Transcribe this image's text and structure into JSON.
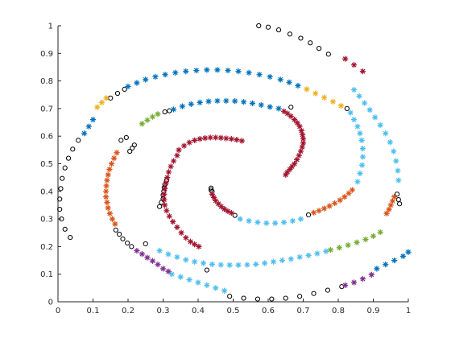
{
  "chart_data": {
    "type": "scatter",
    "title": "",
    "xlabel": "",
    "ylabel": "",
    "xlim": [
      0,
      1
    ],
    "ylim": [
      0,
      1
    ],
    "grid": false,
    "xticks": [
      "0",
      "0.1",
      "0.2",
      "0.3",
      "0.4",
      "0.5",
      "0.6",
      "0.7",
      "0.8",
      "0.9",
      "1"
    ],
    "yticks": [
      "0",
      "0.1",
      "0.2",
      "0.3",
      "0.4",
      "0.5",
      "0.6",
      "0.7",
      "0.8",
      "0.9",
      "1"
    ],
    "marker_colors": {
      "blue": "#0072BD",
      "cyan": "#4DBEEE",
      "red": "#A2142F",
      "orange": "#D95319",
      "yellow": "#EDB120",
      "green": "#77AC30",
      "purple": "#7E2F8E",
      "black": "#000000"
    },
    "series": [
      {
        "marker": "circle",
        "color": "black",
        "points": [
          [
            0.573,
            1.0
          ],
          [
            0.6,
            0.995
          ],
          [
            0.63,
            0.985
          ],
          [
            0.662,
            0.97
          ],
          [
            0.693,
            0.955
          ],
          [
            0.72,
            0.938
          ],
          [
            0.745,
            0.918
          ],
          [
            0.772,
            0.897
          ],
          [
            0.035,
            0.233
          ],
          [
            0.02,
            0.263
          ],
          [
            0.01,
            0.3
          ],
          [
            0.005,
            0.335
          ],
          [
            0.005,
            0.372
          ],
          [
            0.008,
            0.41
          ],
          [
            0.012,
            0.447
          ],
          [
            0.02,
            0.485
          ],
          [
            0.03,
            0.52
          ],
          [
            0.042,
            0.553
          ],
          [
            0.058,
            0.585
          ],
          [
            0.15,
            0.738
          ],
          [
            0.17,
            0.755
          ],
          [
            0.19,
            0.77
          ],
          [
            0.305,
            0.688
          ],
          [
            0.318,
            0.692
          ],
          [
            0.18,
            0.585
          ],
          [
            0.195,
            0.595
          ],
          [
            0.3,
            0.373
          ],
          [
            0.3,
            0.387
          ],
          [
            0.302,
            0.4
          ],
          [
            0.303,
            0.413
          ],
          [
            0.305,
            0.425
          ],
          [
            0.31,
            0.44
          ],
          [
            0.29,
            0.345
          ],
          [
            0.295,
            0.36
          ],
          [
            0.437,
            0.412
          ],
          [
            0.437,
            0.405
          ],
          [
            0.44,
            0.4
          ],
          [
            0.505,
            0.313
          ],
          [
            0.715,
            0.315
          ],
          [
            0.825,
            0.7
          ],
          [
            0.665,
            0.705
          ],
          [
            0.25,
            0.21
          ],
          [
            0.425,
            0.115
          ],
          [
            0.205,
            0.545
          ],
          [
            0.212,
            0.557
          ],
          [
            0.218,
            0.568
          ],
          [
            0.165,
            0.26
          ],
          [
            0.175,
            0.245
          ],
          [
            0.185,
            0.228
          ],
          [
            0.198,
            0.213
          ],
          [
            0.21,
            0.2
          ],
          [
            0.49,
            0.02
          ],
          [
            0.53,
            0.013
          ],
          [
            0.57,
            0.01
          ],
          [
            0.61,
            0.01
          ],
          [
            0.65,
            0.013
          ],
          [
            0.69,
            0.02
          ],
          [
            0.73,
            0.03
          ],
          [
            0.77,
            0.042
          ],
          [
            0.81,
            0.055
          ],
          [
            0.975,
            0.355
          ],
          [
            0.972,
            0.37
          ],
          [
            0.968,
            0.39
          ]
        ]
      },
      {
        "marker": "star",
        "color": "blue",
        "points": [
          [
            0.075,
            0.61
          ],
          [
            0.088,
            0.635
          ],
          [
            0.1,
            0.66
          ],
          [
            0.2,
            0.78
          ],
          [
            0.225,
            0.793
          ],
          [
            0.25,
            0.805
          ],
          [
            0.278,
            0.815
          ],
          [
            0.306,
            0.823
          ],
          [
            0.335,
            0.83
          ],
          [
            0.365,
            0.835
          ],
          [
            0.395,
            0.838
          ],
          [
            0.425,
            0.84
          ],
          [
            0.455,
            0.84
          ],
          [
            0.485,
            0.838
          ],
          [
            0.515,
            0.835
          ],
          [
            0.545,
            0.83
          ],
          [
            0.575,
            0.823
          ],
          [
            0.605,
            0.815
          ],
          [
            0.635,
            0.805
          ],
          [
            0.66,
            0.795
          ],
          [
            0.685,
            0.783
          ],
          [
            0.33,
            0.697
          ],
          [
            0.355,
            0.708
          ],
          [
            0.38,
            0.716
          ],
          [
            0.405,
            0.722
          ],
          [
            0.43,
            0.726
          ],
          [
            0.455,
            0.728
          ],
          [
            0.48,
            0.728
          ],
          [
            0.505,
            0.727
          ],
          [
            0.53,
            0.724
          ],
          [
            0.555,
            0.719
          ],
          [
            0.58,
            0.713
          ],
          [
            0.605,
            0.706
          ],
          [
            0.63,
            0.7
          ],
          [
            0.91,
            0.12
          ],
          [
            0.935,
            0.135
          ],
          [
            0.96,
            0.15
          ],
          [
            0.985,
            0.165
          ],
          [
            1.0,
            0.18
          ]
        ]
      },
      {
        "marker": "star",
        "color": "cyan",
        "points": [
          [
            0.845,
            0.768
          ],
          [
            0.86,
            0.745
          ],
          [
            0.875,
            0.72
          ],
          [
            0.89,
            0.695
          ],
          [
            0.905,
            0.668
          ],
          [
            0.92,
            0.64
          ],
          [
            0.935,
            0.61
          ],
          [
            0.948,
            0.578
          ],
          [
            0.958,
            0.545
          ],
          [
            0.965,
            0.51
          ],
          [
            0.97,
            0.475
          ],
          [
            0.972,
            0.44
          ],
          [
            0.835,
            0.685
          ],
          [
            0.845,
            0.66
          ],
          [
            0.855,
            0.635
          ],
          [
            0.862,
            0.61
          ],
          [
            0.867,
            0.585
          ],
          [
            0.87,
            0.555
          ],
          [
            0.87,
            0.525
          ],
          [
            0.868,
            0.495
          ],
          [
            0.862,
            0.465
          ],
          [
            0.855,
            0.435
          ],
          [
            0.52,
            0.3
          ],
          [
            0.545,
            0.293
          ],
          [
            0.57,
            0.288
          ],
          [
            0.595,
            0.285
          ],
          [
            0.62,
            0.285
          ],
          [
            0.645,
            0.288
          ],
          [
            0.67,
            0.293
          ],
          [
            0.693,
            0.3
          ],
          [
            0.29,
            0.185
          ],
          [
            0.315,
            0.172
          ],
          [
            0.34,
            0.162
          ],
          [
            0.365,
            0.152
          ],
          [
            0.39,
            0.145
          ],
          [
            0.415,
            0.14
          ],
          [
            0.44,
            0.136
          ],
          [
            0.465,
            0.134
          ],
          [
            0.49,
            0.133
          ],
          [
            0.515,
            0.133
          ],
          [
            0.54,
            0.134
          ],
          [
            0.565,
            0.136
          ],
          [
            0.59,
            0.14
          ],
          [
            0.615,
            0.145
          ],
          [
            0.64,
            0.15
          ],
          [
            0.665,
            0.155
          ],
          [
            0.69,
            0.162
          ],
          [
            0.715,
            0.168
          ],
          [
            0.74,
            0.175
          ],
          [
            0.765,
            0.183
          ],
          [
            0.325,
            0.1
          ],
          [
            0.35,
            0.09
          ],
          [
            0.375,
            0.08
          ],
          [
            0.4,
            0.07
          ],
          [
            0.425,
            0.06
          ],
          [
            0.45,
            0.05
          ],
          [
            0.475,
            0.04
          ]
        ]
      },
      {
        "marker": "star",
        "color": "red",
        "points": [
          [
            0.82,
            0.88
          ],
          [
            0.845,
            0.858
          ],
          [
            0.87,
            0.835
          ],
          [
            0.345,
            0.55
          ],
          [
            0.36,
            0.565
          ],
          [
            0.375,
            0.577
          ],
          [
            0.39,
            0.585
          ],
          [
            0.405,
            0.59
          ],
          [
            0.42,
            0.593
          ],
          [
            0.435,
            0.595
          ],
          [
            0.45,
            0.595
          ],
          [
            0.465,
            0.594
          ],
          [
            0.48,
            0.592
          ],
          [
            0.495,
            0.59
          ],
          [
            0.51,
            0.587
          ],
          [
            0.525,
            0.583
          ],
          [
            0.34,
            0.53
          ],
          [
            0.33,
            0.51
          ],
          [
            0.322,
            0.49
          ],
          [
            0.316,
            0.47
          ],
          [
            0.312,
            0.45
          ],
          [
            0.308,
            0.43
          ],
          [
            0.305,
            0.41
          ],
          [
            0.303,
            0.39
          ],
          [
            0.303,
            0.37
          ],
          [
            0.305,
            0.35
          ],
          [
            0.31,
            0.33
          ],
          [
            0.318,
            0.31
          ],
          [
            0.328,
            0.29
          ],
          [
            0.34,
            0.27
          ],
          [
            0.352,
            0.25
          ],
          [
            0.365,
            0.232
          ],
          [
            0.378,
            0.218
          ],
          [
            0.39,
            0.208
          ],
          [
            0.402,
            0.2
          ],
          [
            0.44,
            0.39
          ],
          [
            0.445,
            0.378
          ],
          [
            0.45,
            0.366
          ],
          [
            0.458,
            0.355
          ],
          [
            0.466,
            0.345
          ],
          [
            0.475,
            0.336
          ],
          [
            0.485,
            0.328
          ],
          [
            0.495,
            0.322
          ],
          [
            0.65,
            0.46
          ],
          [
            0.655,
            0.47
          ],
          [
            0.662,
            0.48
          ],
          [
            0.668,
            0.49
          ],
          [
            0.675,
            0.5
          ],
          [
            0.682,
            0.515
          ],
          [
            0.688,
            0.53
          ],
          [
            0.693,
            0.545
          ],
          [
            0.697,
            0.56
          ],
          [
            0.7,
            0.575
          ],
          [
            0.7,
            0.59
          ],
          [
            0.698,
            0.605
          ],
          [
            0.695,
            0.62
          ],
          [
            0.69,
            0.635
          ],
          [
            0.683,
            0.648
          ],
          [
            0.675,
            0.66
          ],
          [
            0.665,
            0.672
          ],
          [
            0.655,
            0.682
          ],
          [
            0.645,
            0.69
          ]
        ]
      },
      {
        "marker": "star",
        "color": "orange",
        "points": [
          [
            0.14,
            0.44
          ],
          [
            0.143,
            0.46
          ],
          [
            0.147,
            0.48
          ],
          [
            0.153,
            0.5
          ],
          [
            0.16,
            0.52
          ],
          [
            0.168,
            0.54
          ],
          [
            0.138,
            0.42
          ],
          [
            0.137,
            0.4
          ],
          [
            0.137,
            0.38
          ],
          [
            0.14,
            0.36
          ],
          [
            0.143,
            0.34
          ],
          [
            0.148,
            0.32
          ],
          [
            0.155,
            0.3
          ],
          [
            0.163,
            0.282
          ],
          [
            0.73,
            0.323
          ],
          [
            0.745,
            0.33
          ],
          [
            0.76,
            0.338
          ],
          [
            0.775,
            0.347
          ],
          [
            0.79,
            0.357
          ],
          [
            0.805,
            0.368
          ],
          [
            0.818,
            0.38
          ],
          [
            0.83,
            0.393
          ],
          [
            0.84,
            0.405
          ],
          [
            0.96,
            0.38
          ],
          [
            0.955,
            0.365
          ],
          [
            0.95,
            0.35
          ],
          [
            0.945,
            0.335
          ],
          [
            0.938,
            0.32
          ]
        ]
      },
      {
        "marker": "star",
        "color": "yellow",
        "points": [
          [
            0.112,
            0.705
          ],
          [
            0.125,
            0.722
          ],
          [
            0.138,
            0.738
          ],
          [
            0.71,
            0.77
          ],
          [
            0.735,
            0.755
          ],
          [
            0.76,
            0.74
          ],
          [
            0.785,
            0.725
          ],
          [
            0.808,
            0.71
          ]
        ]
      },
      {
        "marker": "star",
        "color": "green",
        "points": [
          [
            0.24,
            0.645
          ],
          [
            0.255,
            0.658
          ],
          [
            0.27,
            0.67
          ],
          [
            0.285,
            0.68
          ],
          [
            0.778,
            0.188
          ],
          [
            0.803,
            0.196
          ],
          [
            0.828,
            0.205
          ],
          [
            0.853,
            0.215
          ],
          [
            0.878,
            0.226
          ],
          [
            0.9,
            0.238
          ],
          [
            0.92,
            0.252
          ]
        ]
      },
      {
        "marker": "star",
        "color": "purple",
        "points": [
          [
            0.225,
            0.185
          ],
          [
            0.24,
            0.173
          ],
          [
            0.255,
            0.16
          ],
          [
            0.27,
            0.148
          ],
          [
            0.285,
            0.135
          ],
          [
            0.3,
            0.12
          ],
          [
            0.315,
            0.11
          ],
          [
            0.82,
            0.06
          ],
          [
            0.845,
            0.07
          ],
          [
            0.87,
            0.083
          ],
          [
            0.895,
            0.098
          ]
        ]
      }
    ]
  }
}
